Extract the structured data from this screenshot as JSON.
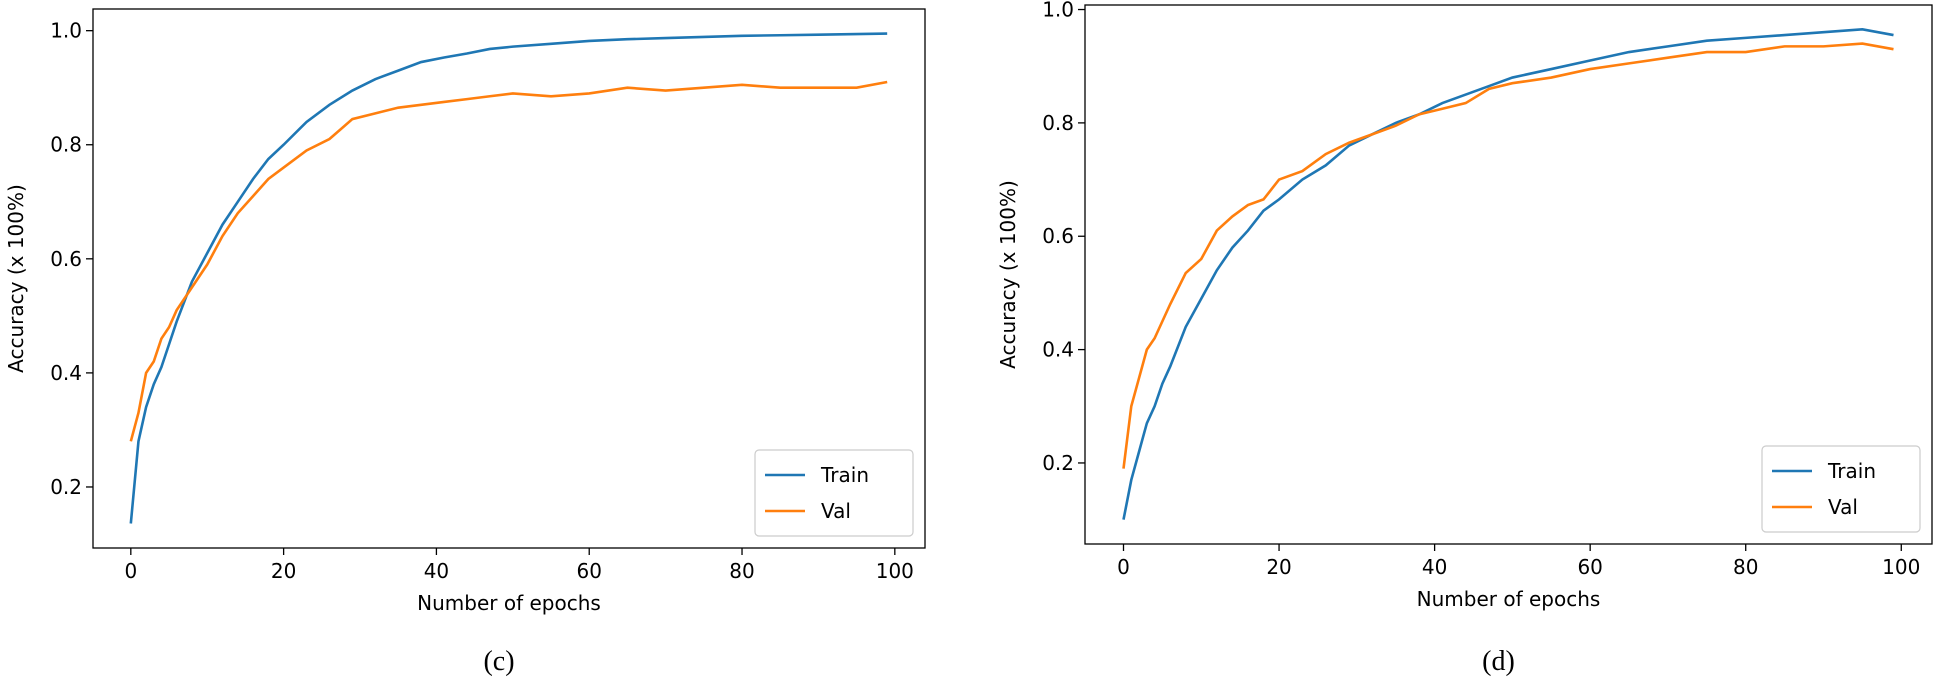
{
  "chart_data": [
    {
      "type": "line",
      "caption": "(c)",
      "xlabel": "Number of epochs",
      "ylabel": "Accuracy (x 100%)",
      "x": [
        0,
        1,
        2,
        3,
        4,
        5,
        6,
        8,
        10,
        12,
        14,
        16,
        18,
        20,
        23,
        26,
        29,
        32,
        35,
        38,
        41,
        44,
        47,
        50,
        55,
        60,
        65,
        70,
        75,
        80,
        85,
        90,
        95,
        99
      ],
      "series": [
        {
          "name": "Train",
          "color": "#1f77b4",
          "values": [
            0.136,
            0.28,
            0.34,
            0.38,
            0.41,
            0.45,
            0.49,
            0.56,
            0.61,
            0.66,
            0.7,
            0.74,
            0.775,
            0.8,
            0.84,
            0.87,
            0.895,
            0.915,
            0.93,
            0.945,
            0.953,
            0.96,
            0.968,
            0.972,
            0.977,
            0.982,
            0.985,
            0.987,
            0.989,
            0.991,
            0.992,
            0.993,
            0.994,
            0.995
          ]
        },
        {
          "name": "Val",
          "color": "#ff7f0e",
          "values": [
            0.28,
            0.33,
            0.4,
            0.42,
            0.46,
            0.48,
            0.51,
            0.55,
            0.59,
            0.64,
            0.68,
            0.71,
            0.74,
            0.76,
            0.79,
            0.81,
            0.845,
            0.855,
            0.865,
            0.87,
            0.875,
            0.88,
            0.885,
            0.89,
            0.885,
            0.89,
            0.9,
            0.895,
            0.9,
            0.905,
            0.9,
            0.9,
            0.9,
            0.91
          ]
        }
      ],
      "xlim": [
        -4.95,
        103.95
      ],
      "xticks": [
        0,
        20,
        40,
        60,
        80,
        100
      ],
      "ylim": [
        0.093,
        1.038
      ],
      "yticks": [
        0.2,
        0.4,
        0.6,
        0.8,
        {
          "value": 1,
          "label": "1.0"
        }
      ],
      "legend": "lower right"
    },
    {
      "type": "line",
      "caption": "(d)",
      "xlabel": "Number of epochs",
      "ylabel": "Accuracy (x 100%)",
      "x": [
        0,
        1,
        2,
        3,
        4,
        5,
        6,
        8,
        10,
        12,
        14,
        16,
        18,
        20,
        23,
        26,
        29,
        32,
        35,
        38,
        41,
        44,
        47,
        50,
        55,
        60,
        65,
        70,
        75,
        80,
        85,
        90,
        95,
        99
      ],
      "series": [
        {
          "name": "Train",
          "color": "#1f77b4",
          "values": [
            0.1,
            0.17,
            0.22,
            0.27,
            0.3,
            0.34,
            0.37,
            0.44,
            0.49,
            0.54,
            0.58,
            0.61,
            0.645,
            0.665,
            0.7,
            0.725,
            0.76,
            0.78,
            0.8,
            0.815,
            0.835,
            0.85,
            0.865,
            0.88,
            0.895,
            0.91,
            0.925,
            0.935,
            0.945,
            0.95,
            0.955,
            0.96,
            0.965,
            0.955
          ]
        },
        {
          "name": "Val",
          "color": "#ff7f0e",
          "values": [
            0.19,
            0.3,
            0.35,
            0.4,
            0.42,
            0.45,
            0.48,
            0.535,
            0.56,
            0.61,
            0.635,
            0.655,
            0.665,
            0.7,
            0.715,
            0.745,
            0.765,
            0.78,
            0.795,
            0.815,
            0.825,
            0.835,
            0.86,
            0.87,
            0.88,
            0.895,
            0.905,
            0.915,
            0.925,
            0.925,
            0.935,
            0.935,
            0.94,
            0.93
          ]
        }
      ],
      "xlim": [
        -4.95,
        103.95
      ],
      "xticks": [
        0,
        20,
        40,
        60,
        80,
        100
      ],
      "ylim": [
        0.057,
        1.008
      ],
      "yticks": [
        0.2,
        0.4,
        0.6,
        0.8,
        {
          "value": 1,
          "label": "1.0"
        }
      ],
      "legend": "lower right"
    }
  ]
}
